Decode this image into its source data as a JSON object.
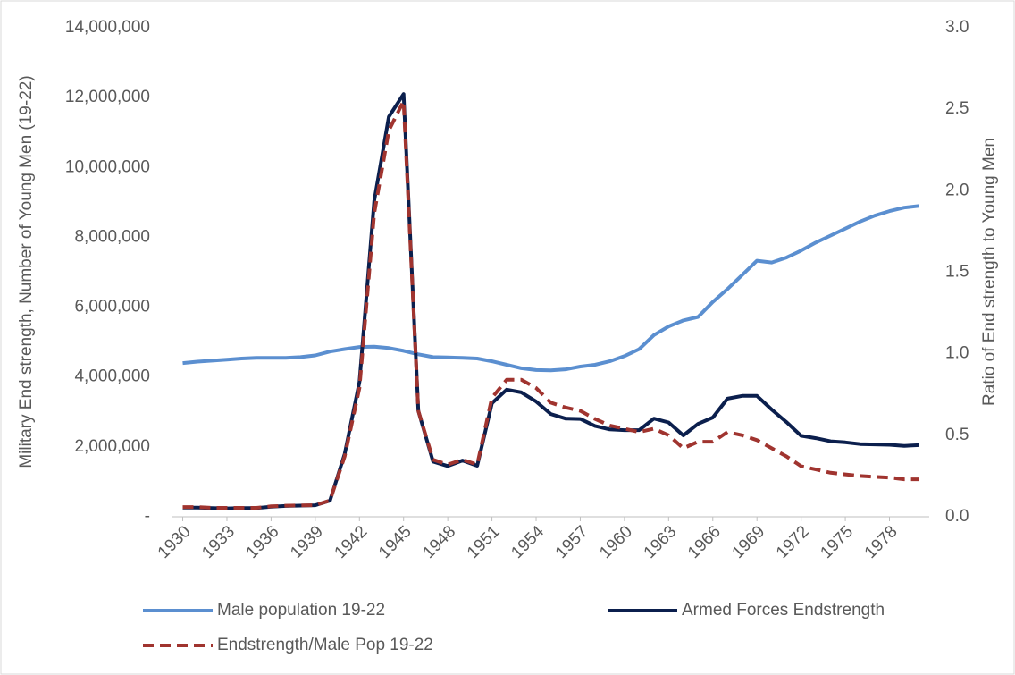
{
  "chart_data": {
    "type": "line",
    "y_label": "Military End strength, Number of Young Men (19-22)",
    "y2_label": "Ratio of End strength to Young Men",
    "x": [
      1930,
      1931,
      1932,
      1933,
      1934,
      1935,
      1936,
      1937,
      1938,
      1939,
      1940,
      1941,
      1942,
      1943,
      1944,
      1945,
      1946,
      1947,
      1948,
      1949,
      1950,
      1951,
      1952,
      1953,
      1954,
      1955,
      1956,
      1957,
      1958,
      1959,
      1960,
      1961,
      1962,
      1963,
      1964,
      1965,
      1966,
      1967,
      1968,
      1969,
      1970,
      1971,
      1972,
      1973,
      1974,
      1975,
      1976,
      1977,
      1978,
      1979,
      1980
    ],
    "xlim": [
      1929.3,
      1980.7
    ],
    "xticks": [
      1930,
      1933,
      1936,
      1939,
      1942,
      1945,
      1948,
      1951,
      1954,
      1957,
      1960,
      1963,
      1966,
      1969,
      1972,
      1975,
      1978
    ],
    "ylim": [
      0,
      14000000
    ],
    "yticks": [
      {
        "value": 0,
        "label": "-"
      },
      {
        "value": 2000000,
        "label": "2,000,000"
      },
      {
        "value": 4000000,
        "label": "4,000,000"
      },
      {
        "value": 6000000,
        "label": "6,000,000"
      },
      {
        "value": 8000000,
        "label": "8,000,000"
      },
      {
        "value": 10000000,
        "label": "10,000,000"
      },
      {
        "value": 12000000,
        "label": "12,000,000"
      },
      {
        "value": 14000000,
        "label": "14,000,000"
      }
    ],
    "y2lim": [
      0,
      3
    ],
    "y2ticks": [
      {
        "value": 0,
        "label": "0.0"
      },
      0.5,
      {
        "value": 1,
        "label": "1.0"
      },
      1.5,
      {
        "value": 2,
        "label": "2.0"
      },
      2.5,
      {
        "value": 3,
        "label": "3.0"
      }
    ],
    "grid": false,
    "legend": "bottom",
    "series": [
      {
        "name": "Male population 19-22",
        "color": "#5b8fd0",
        "dash": false,
        "values": [
          4400000,
          4440000,
          4470000,
          4500000,
          4530000,
          4550000,
          4550000,
          4550000,
          4570000,
          4620000,
          4730000,
          4800000,
          4860000,
          4870000,
          4830000,
          4750000,
          4650000,
          4570000,
          4560000,
          4550000,
          4530000,
          4450000,
          4350000,
          4250000,
          4200000,
          4190000,
          4220000,
          4300000,
          4350000,
          4450000,
          4600000,
          4800000,
          5200000,
          5450000,
          5620000,
          5720000,
          6150000,
          6520000,
          6920000,
          7330000,
          7280000,
          7420000,
          7620000,
          7850000,
          8050000,
          8250000,
          8450000,
          8620000,
          8750000,
          8850000,
          8900000
        ]
      },
      {
        "name": "Armed Forces Endstrength",
        "color": "#0b1f4d",
        "dash": false,
        "values": [
          260000,
          260000,
          250000,
          240000,
          250000,
          250000,
          290000,
          310000,
          320000,
          330000,
          460000,
          1800000,
          3860000,
          9040000,
          11450000,
          12100000,
          3030000,
          1580000,
          1450000,
          1610000,
          1460000,
          3250000,
          3640000,
          3560000,
          3300000,
          2940000,
          2810000,
          2800000,
          2600000,
          2500000,
          2480000,
          2480000,
          2810000,
          2700000,
          2330000,
          2660000,
          2840000,
          3380000,
          3460000,
          3460000,
          3070000,
          2710000,
          2320000,
          2250000,
          2160000,
          2130000,
          2080000,
          2070000,
          2060000,
          2030000,
          2050000
        ]
      },
      {
        "name": "Endstrength/Male Pop 19-22",
        "color": "#a0342f",
        "dash": true,
        "axis": "y2",
        "values": [
          0.06,
          0.06,
          0.055,
          0.055,
          0.055,
          0.055,
          0.064,
          0.068,
          0.07,
          0.071,
          0.1,
          0.37,
          0.79,
          1.86,
          2.37,
          2.55,
          0.65,
          0.35,
          0.32,
          0.35,
          0.32,
          0.73,
          0.84,
          0.84,
          0.79,
          0.7,
          0.67,
          0.65,
          0.6,
          0.56,
          0.54,
          0.52,
          0.54,
          0.5,
          0.42,
          0.46,
          0.46,
          0.52,
          0.5,
          0.47,
          0.42,
          0.37,
          0.31,
          0.29,
          0.27,
          0.26,
          0.25,
          0.245,
          0.24,
          0.23,
          0.23
        ]
      }
    ]
  }
}
